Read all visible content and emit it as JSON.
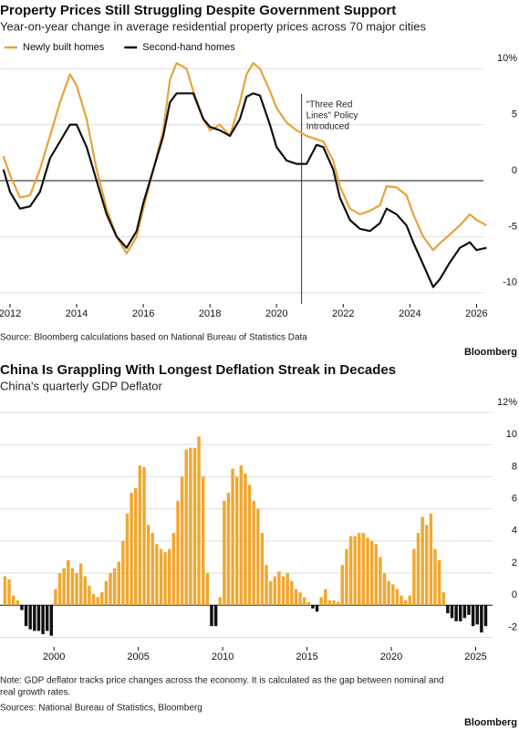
{
  "chart_data": [
    {
      "type": "line",
      "title": "Property Prices Still Struggling Despite Government Support",
      "subtitle": "Year-on-year change in average residential property prices across 70 major cities",
      "x": [
        2011.8,
        2012.0,
        2012.3,
        2012.6,
        2012.9,
        2013.2,
        2013.5,
        2013.8,
        2014.0,
        2014.3,
        2014.6,
        2014.9,
        2015.2,
        2015.5,
        2015.8,
        2016.0,
        2016.3,
        2016.6,
        2016.8,
        2017.0,
        2017.3,
        2017.5,
        2017.8,
        2018.0,
        2018.3,
        2018.6,
        2018.9,
        2019.1,
        2019.3,
        2019.5,
        2019.8,
        2020.0,
        2020.3,
        2020.6,
        2020.9,
        2021.2,
        2021.4,
        2021.7,
        2021.9,
        2022.2,
        2022.5,
        2022.8,
        2023.1,
        2023.3,
        2023.6,
        2023.9,
        2024.1,
        2024.4,
        2024.7,
        2024.9,
        2025.2,
        2025.5,
        2025.8,
        2026.0,
        2026.3
      ],
      "series": [
        {
          "name": "Newly built homes",
          "color": "#e8a33d",
          "values": [
            2.2,
            0.5,
            -1.5,
            -1.3,
            1,
            4,
            7,
            9.5,
            8.5,
            5.5,
            1,
            -2.5,
            -5,
            -6.5,
            -5,
            -2.5,
            1,
            4.5,
            9,
            10.5,
            10,
            8,
            5.5,
            4.5,
            5,
            4,
            7,
            9.5,
            10.5,
            10,
            8,
            6.5,
            5.2,
            4.5,
            4.0,
            3.7,
            3.5,
            1.8,
            -0.5,
            -2.5,
            -3,
            -2.7,
            -2.2,
            -0.5,
            -0.6,
            -1.3,
            -3,
            -5,
            -6.2,
            -5.6,
            -4.8,
            -4,
            -3.0,
            -3.5,
            -4.0
          ]
        },
        {
          "name": "Second-hand homes",
          "color": "#111111",
          "values": [
            1.0,
            -1,
            -2.5,
            -2.3,
            -1,
            2,
            3.5,
            5,
            5,
            3,
            0,
            -3,
            -5,
            -6,
            -4.5,
            -2,
            1,
            4,
            7,
            7.8,
            7.8,
            7.8,
            5.5,
            4.8,
            4.5,
            4,
            5.5,
            7.5,
            7.8,
            7.6,
            5,
            3,
            1.8,
            1.5,
            1.5,
            3.2,
            3.0,
            1.0,
            -1.5,
            -3.5,
            -4.3,
            -4.5,
            -3.8,
            -2.5,
            -3.0,
            -4.0,
            -5.5,
            -7.5,
            -9.5,
            -8.8,
            -7.3,
            -6.0,
            -5.5,
            -6.2,
            -6.0
          ]
        }
      ],
      "xlim": [
        2011.7,
        2026.7
      ],
      "xticks": [
        2012,
        2014,
        2016,
        2018,
        2020,
        2022,
        2024,
        2026
      ],
      "ylim": [
        -11,
        11
      ],
      "yticks": [
        {
          "value": 10,
          "label": "10%"
        },
        5,
        0,
        -5,
        -10
      ],
      "grid": true,
      "annotation": {
        "x": 2020.75,
        "lines": [
          "\"Three Red",
          "Lines\" Policy",
          "Introduced"
        ]
      },
      "source": "Source: Bloomberg calculations based on National Bureau of Statistics Data",
      "brand": "Bloomberg"
    },
    {
      "type": "bar",
      "title": "China Is Grappling With Longest Deflation Streak in Decades",
      "subtitle": "China's quarterly GDP Deflator",
      "x": [
        1997,
        1997.25,
        1997.5,
        1997.75,
        1998,
        1998.25,
        1998.5,
        1998.75,
        1999,
        1999.25,
        1999.5,
        1999.75,
        2000,
        2000.25,
        2000.5,
        2000.75,
        2001,
        2001.25,
        2001.5,
        2001.75,
        2002,
        2002.25,
        2002.5,
        2002.75,
        2003,
        2003.25,
        2003.5,
        2003.75,
        2004,
        2004.25,
        2004.5,
        2004.75,
        2005,
        2005.25,
        2005.5,
        2005.75,
        2006,
        2006.25,
        2006.5,
        2006.75,
        2007,
        2007.25,
        2007.5,
        2007.75,
        2008,
        2008.25,
        2008.5,
        2008.75,
        2009,
        2009.25,
        2009.5,
        2009.75,
        2010,
        2010.25,
        2010.5,
        2010.75,
        2011,
        2011.25,
        2011.5,
        2011.75,
        2012,
        2012.25,
        2012.5,
        2012.75,
        2013,
        2013.25,
        2013.5,
        2013.75,
        2014,
        2014.25,
        2014.5,
        2014.75,
        2015,
        2015.25,
        2015.5,
        2015.75,
        2016,
        2016.25,
        2016.5,
        2016.75,
        2017,
        2017.25,
        2017.5,
        2017.75,
        2018,
        2018.25,
        2018.5,
        2018.75,
        2019,
        2019.25,
        2019.5,
        2019.75,
        2020,
        2020.25,
        2020.5,
        2020.75,
        2021,
        2021.25,
        2021.5,
        2021.75,
        2022,
        2022.25,
        2022.5,
        2022.75,
        2023,
        2023.25,
        2023.5,
        2023.75,
        2024,
        2024.25,
        2024.5,
        2024.75,
        2025,
        2025.25,
        2025.5
      ],
      "values": [
        1.8,
        1.6,
        0.6,
        0.3,
        -0.3,
        -1.3,
        -1.5,
        -1.6,
        -1.6,
        -1.8,
        -1.6,
        -1.9,
        1.0,
        2.0,
        2.3,
        2.8,
        2.3,
        2.0,
        2.6,
        1.8,
        1.2,
        0.7,
        0.5,
        0.8,
        1.5,
        2.0,
        2.3,
        2.7,
        4.0,
        5.7,
        7.0,
        7.3,
        8.7,
        8.6,
        5.0,
        4.5,
        3.8,
        3.5,
        3.3,
        3.5,
        4.5,
        6.5,
        8.0,
        9.7,
        9.8,
        9.8,
        10.5,
        8.0,
        2.0,
        -1.3,
        -1.3,
        0.5,
        6.5,
        7.0,
        8.5,
        8.0,
        8.7,
        8.2,
        7.5,
        6.5,
        6.0,
        4.5,
        2.5,
        1.5,
        1.8,
        2.1,
        1.8,
        2.0,
        1.5,
        1.0,
        0.8,
        0.5,
        0.2,
        -0.2,
        -0.4,
        0.5,
        1.0,
        0.3,
        0.3,
        0.2,
        2.5,
        3.5,
        4.3,
        4.3,
        4.5,
        4.5,
        4.2,
        4.0,
        3.8,
        3.0,
        2.0,
        1.5,
        1.3,
        1.0,
        0.6,
        0.3,
        0.6,
        3.5,
        4.5,
        5.5,
        5.0,
        5.7,
        3.5,
        2.8,
        0.8,
        -0.5,
        -0.8,
        -1.0,
        -1.0,
        -0.8,
        -0.6,
        -1.3,
        -1.2,
        -1.7,
        -1.3
      ],
      "color": "#f0a830",
      "negative_color": "#111111",
      "xlim": [
        1996.8,
        2026.0
      ],
      "xticks": [
        2000,
        2005,
        2010,
        2015,
        2020,
        2025
      ],
      "ylim": [
        -2.6,
        12
      ],
      "yticks": [
        {
          "value": 12,
          "label": "12%"
        },
        10,
        8,
        6,
        4,
        2,
        0,
        -2
      ],
      "grid": true,
      "note": [
        "Note: GDP deflator tracks price changes across the economy. It is calculated as the gap between nominal and",
        "real growth rates."
      ],
      "source": "Sources: National Bureau of Statistics, Bloomberg",
      "brand": "Bloomberg"
    }
  ]
}
